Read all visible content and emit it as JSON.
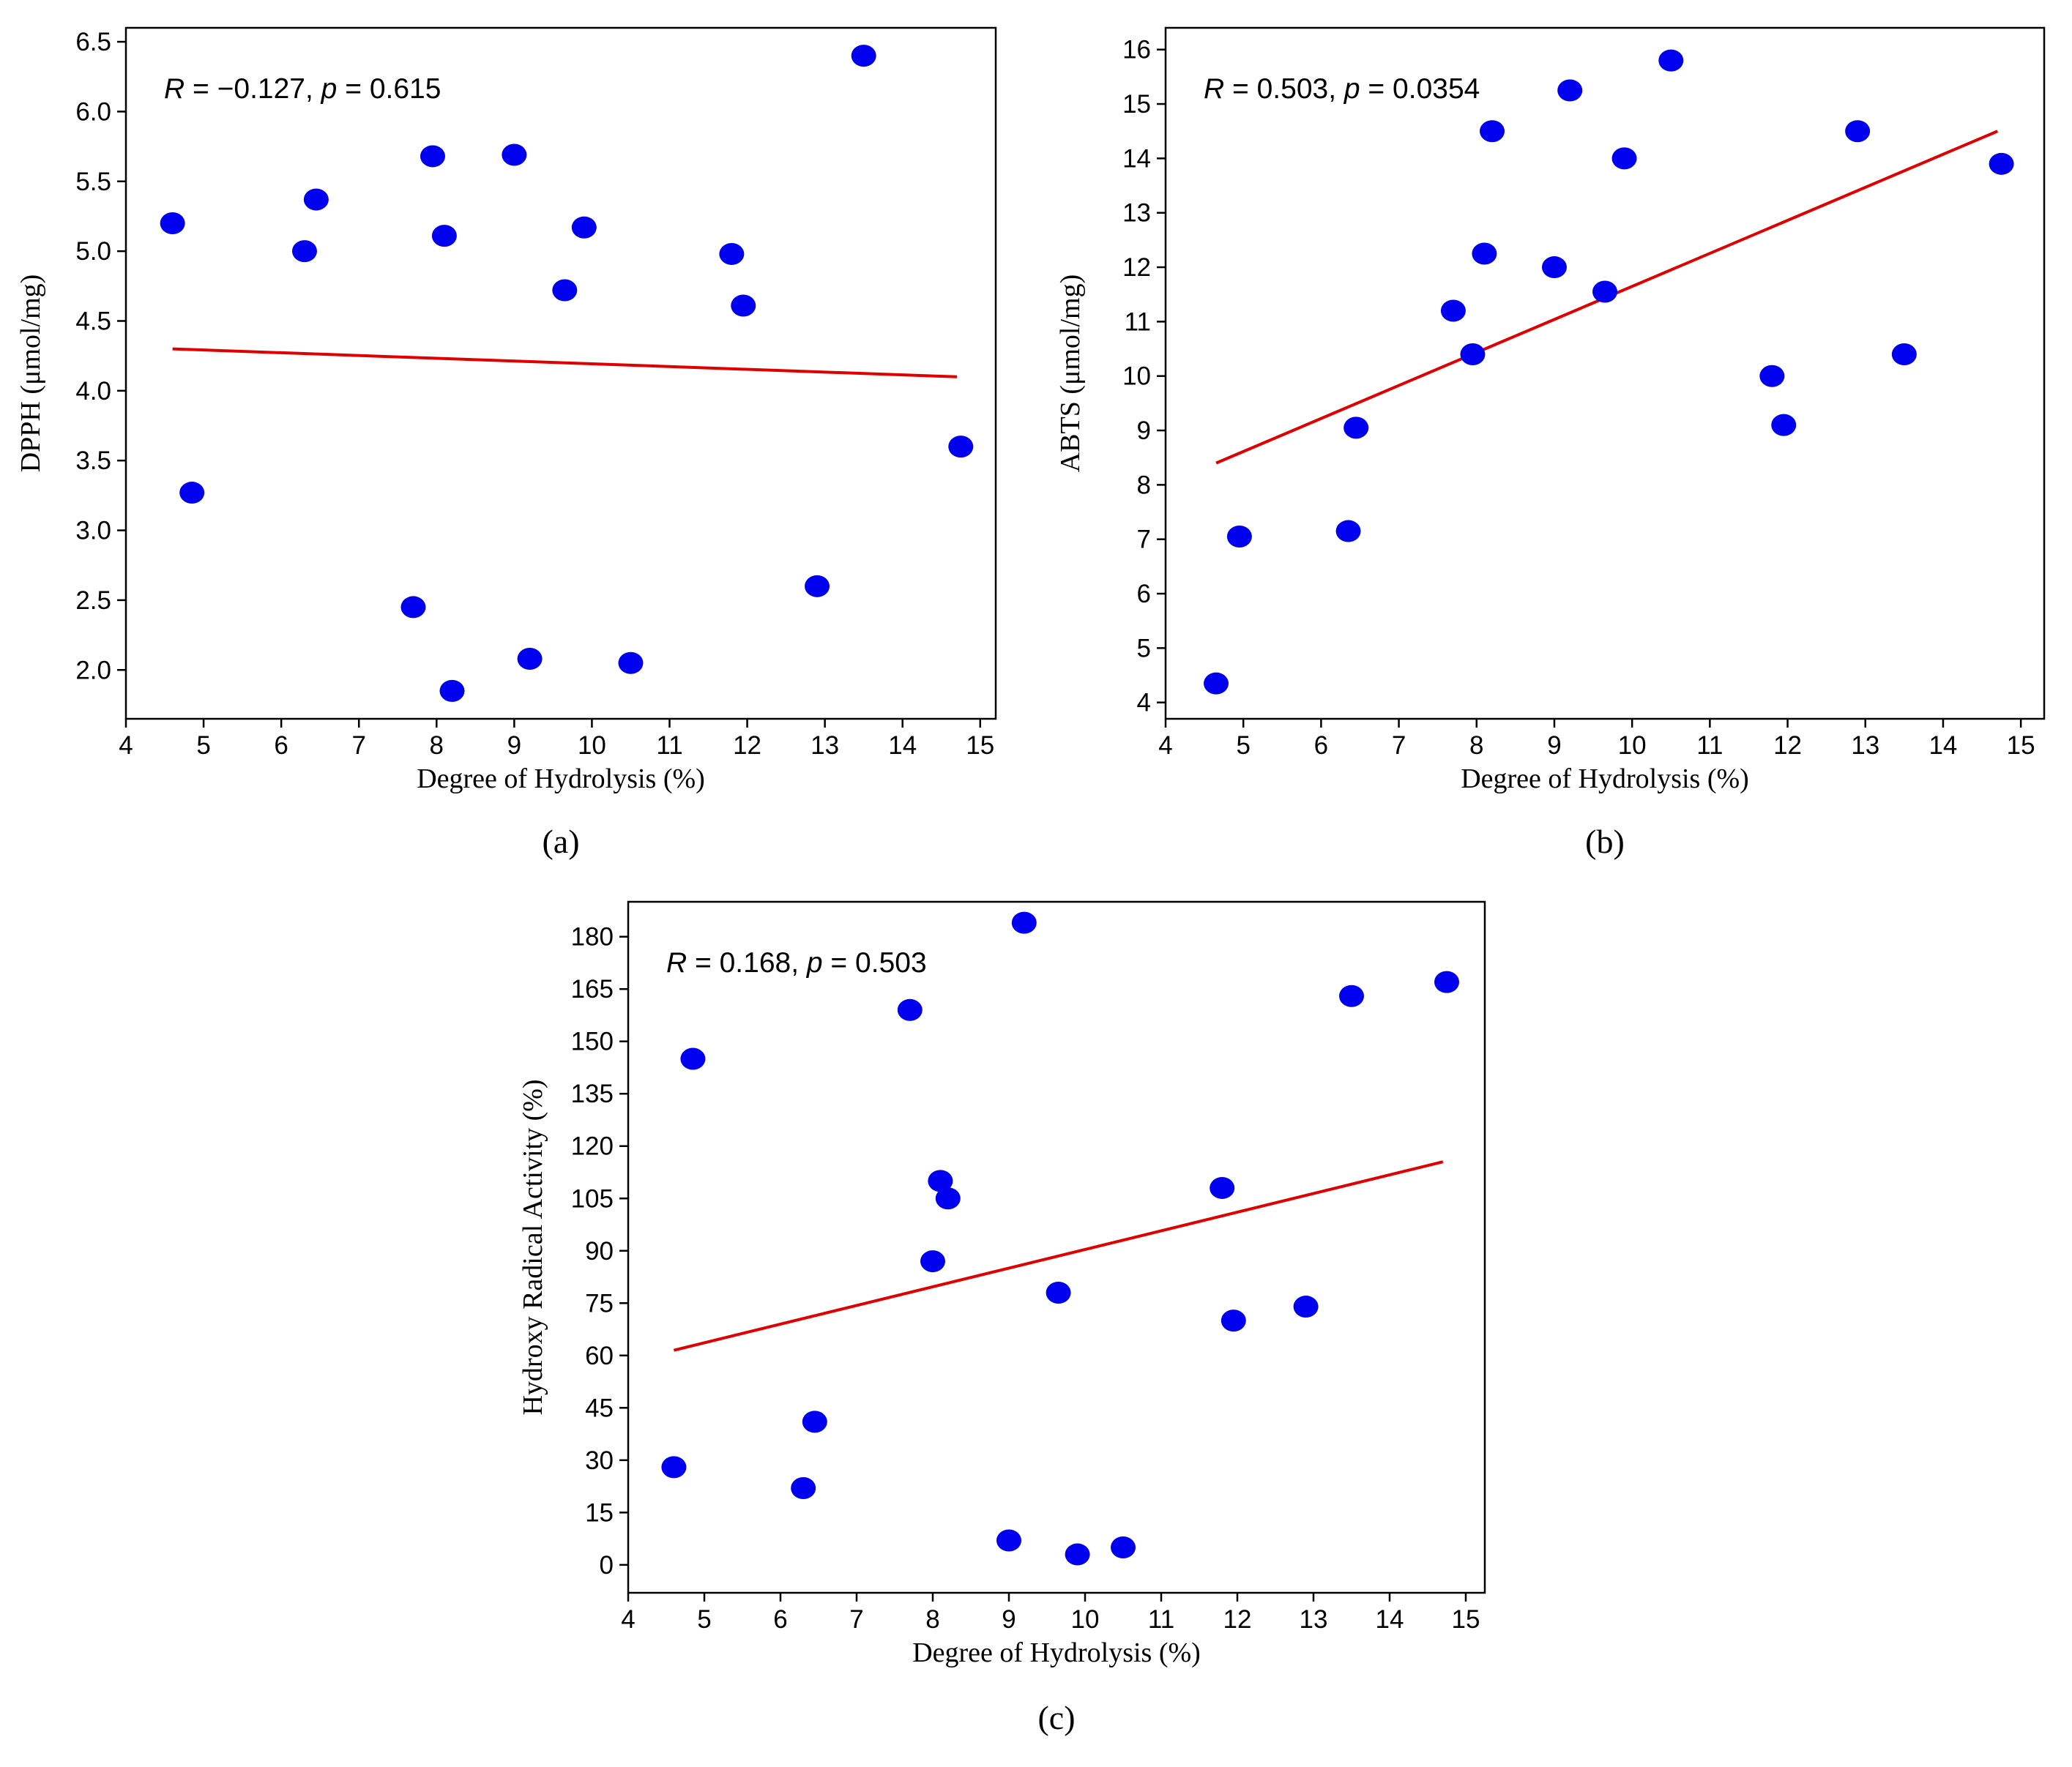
{
  "colors": {
    "points": "#0000ee",
    "fit_line": "#e00000",
    "frame": "#000000"
  },
  "chart_data": [
    {
      "type": "scatter",
      "panel": "(a)",
      "xlabel": "Degree of Hydrolysis (%)",
      "ylabel": "DPPH (μmol/mg)",
      "annotation": {
        "r_sym": "R",
        "r_text": " = −0.127, ",
        "p_sym": "p",
        "p_text": " = 0.615"
      },
      "xlim": [
        4,
        15.2
      ],
      "ylim": [
        1.65,
        6.6
      ],
      "xticks": [
        4,
        5,
        6,
        7,
        8,
        9,
        10,
        11,
        12,
        13,
        14,
        15
      ],
      "yticks": [
        2.0,
        2.5,
        3.0,
        3.5,
        4.0,
        4.5,
        5.0,
        5.5,
        6.0,
        6.5
      ],
      "ytick_decimals": 1,
      "points": {
        "x": [
          4.6,
          4.85,
          6.3,
          6.45,
          7.7,
          7.95,
          8.1,
          8.2,
          9.0,
          9.2,
          9.65,
          9.9,
          10.5,
          11.8,
          11.95,
          12.9,
          13.5,
          14.75
        ],
        "y": [
          5.2,
          3.27,
          5.0,
          5.37,
          2.45,
          5.68,
          5.11,
          1.85,
          5.69,
          2.08,
          4.72,
          5.17,
          2.05,
          4.98,
          4.61,
          2.6,
          6.4,
          3.6
        ]
      },
      "fit_line": {
        "x": [
          4.6,
          14.7
        ],
        "y": [
          4.3,
          4.1
        ]
      }
    },
    {
      "type": "scatter",
      "panel": "(b)",
      "xlabel": "Degree of Hydrolysis (%)",
      "ylabel": "ABTS (μmol/mg)",
      "annotation": {
        "r_sym": "R",
        "r_text": " = 0.503, ",
        "p_sym": "p",
        "p_text": " = 0.0354"
      },
      "xlim": [
        4,
        15.3
      ],
      "ylim": [
        3.7,
        16.4
      ],
      "xticks": [
        4,
        5,
        6,
        7,
        8,
        9,
        10,
        11,
        12,
        13,
        14,
        15
      ],
      "yticks": [
        4,
        5,
        6,
        7,
        8,
        9,
        10,
        11,
        12,
        13,
        14,
        15,
        16
      ],
      "ytick_decimals": 0,
      "points": {
        "x": [
          4.65,
          4.95,
          6.35,
          6.45,
          7.7,
          7.95,
          8.1,
          8.2,
          9.0,
          9.2,
          9.65,
          9.9,
          10.5,
          11.8,
          11.95,
          12.9,
          13.5,
          14.75
        ],
        "y": [
          4.35,
          7.05,
          7.15,
          9.05,
          11.2,
          10.4,
          12.25,
          14.5,
          12.0,
          15.25,
          11.55,
          14.0,
          15.8,
          10.0,
          9.1,
          14.5,
          10.4,
          13.9
        ]
      },
      "fit_line": {
        "x": [
          4.65,
          14.7
        ],
        "y": [
          8.4,
          14.5
        ]
      }
    },
    {
      "type": "scatter",
      "panel": "(c)",
      "xlabel": "Degree of Hydrolysis (%)",
      "ylabel": "Hydroxy Radical Activity (%)",
      "annotation": {
        "r_sym": "R",
        "r_text": " = 0.168, ",
        "p_sym": "p",
        "p_text": " = 0.503"
      },
      "xlim": [
        4,
        15.25
      ],
      "ylim": [
        -8,
        190
      ],
      "xticks": [
        4,
        5,
        6,
        7,
        8,
        9,
        10,
        11,
        12,
        13,
        14,
        15
      ],
      "yticks": [
        0,
        15,
        30,
        45,
        60,
        75,
        90,
        105,
        120,
        135,
        150,
        165,
        180
      ],
      "ytick_decimals": 0,
      "points": {
        "x": [
          4.6,
          4.85,
          6.3,
          6.45,
          7.7,
          8.0,
          8.1,
          8.2,
          9.0,
          9.2,
          9.65,
          9.9,
          10.5,
          11.8,
          11.95,
          12.9,
          13.5,
          14.75
        ],
        "y": [
          28,
          145,
          22,
          41,
          159,
          87,
          110,
          105,
          7,
          184,
          78,
          3,
          5,
          108,
          70,
          74,
          163,
          167
        ]
      },
      "fit_line": {
        "x": [
          4.6,
          14.7
        ],
        "y": [
          61.5,
          115.5
        ]
      }
    }
  ]
}
